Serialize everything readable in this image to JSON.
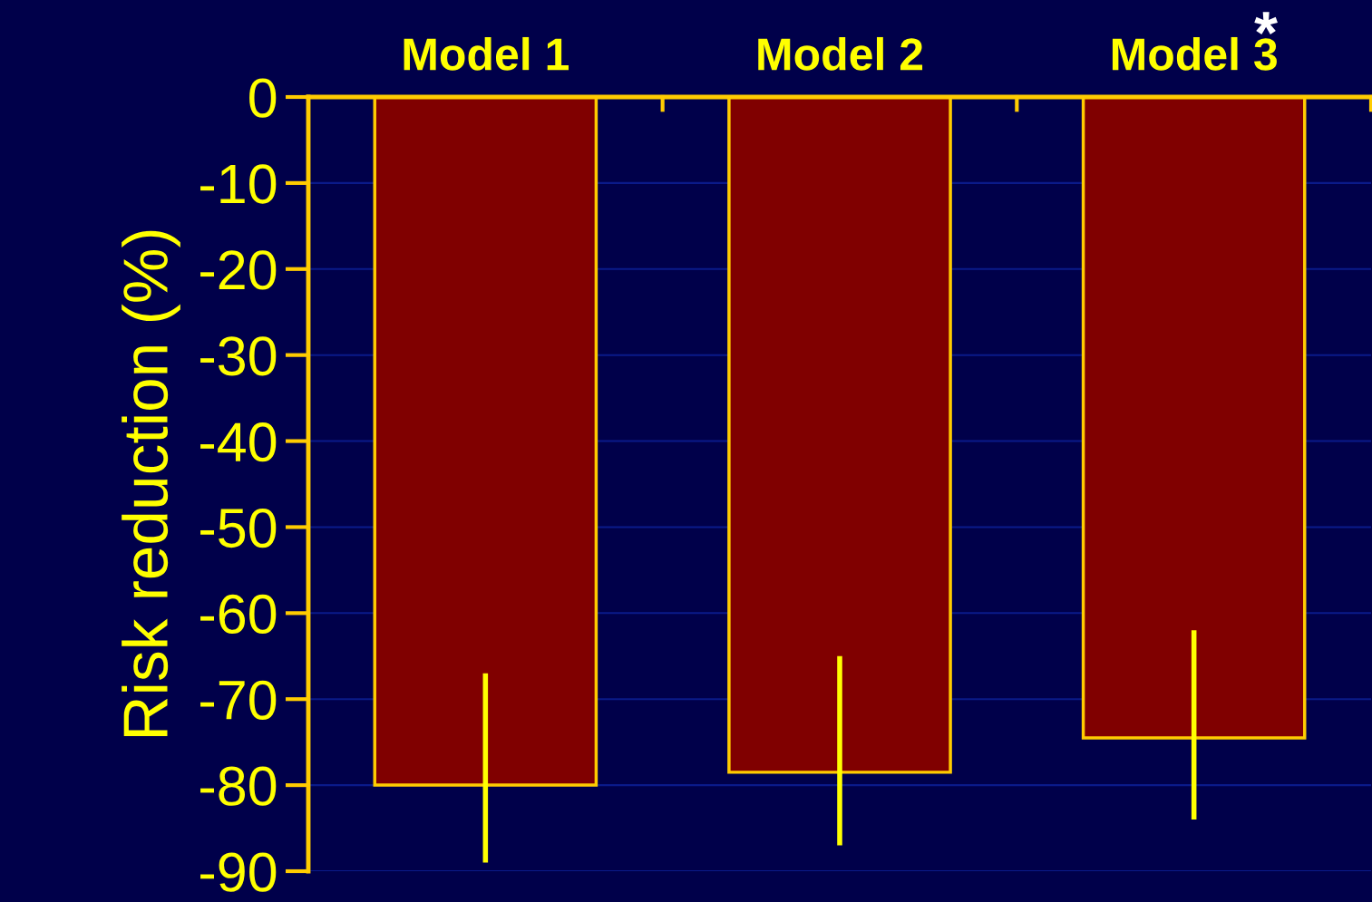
{
  "chart_data": {
    "type": "bar",
    "ylabel": "Risk reduction (%)",
    "categories": [
      "Model 1",
      "Model 2",
      "Model 3"
    ],
    "series": [
      {
        "color": "#800000",
        "values": [
          -80,
          -78.5,
          -74.5
        ],
        "errors": [
          [
            -89,
            -67
          ],
          [
            -87,
            -65
          ],
          [
            -84,
            -62
          ]
        ]
      }
    ],
    "ylim": [
      -90,
      0
    ],
    "yticks": [
      -90,
      -80,
      -70,
      -60,
      -50,
      -40,
      -30,
      -20,
      -10,
      0
    ],
    "grid": "y",
    "annotations": [
      "*"
    ]
  }
}
